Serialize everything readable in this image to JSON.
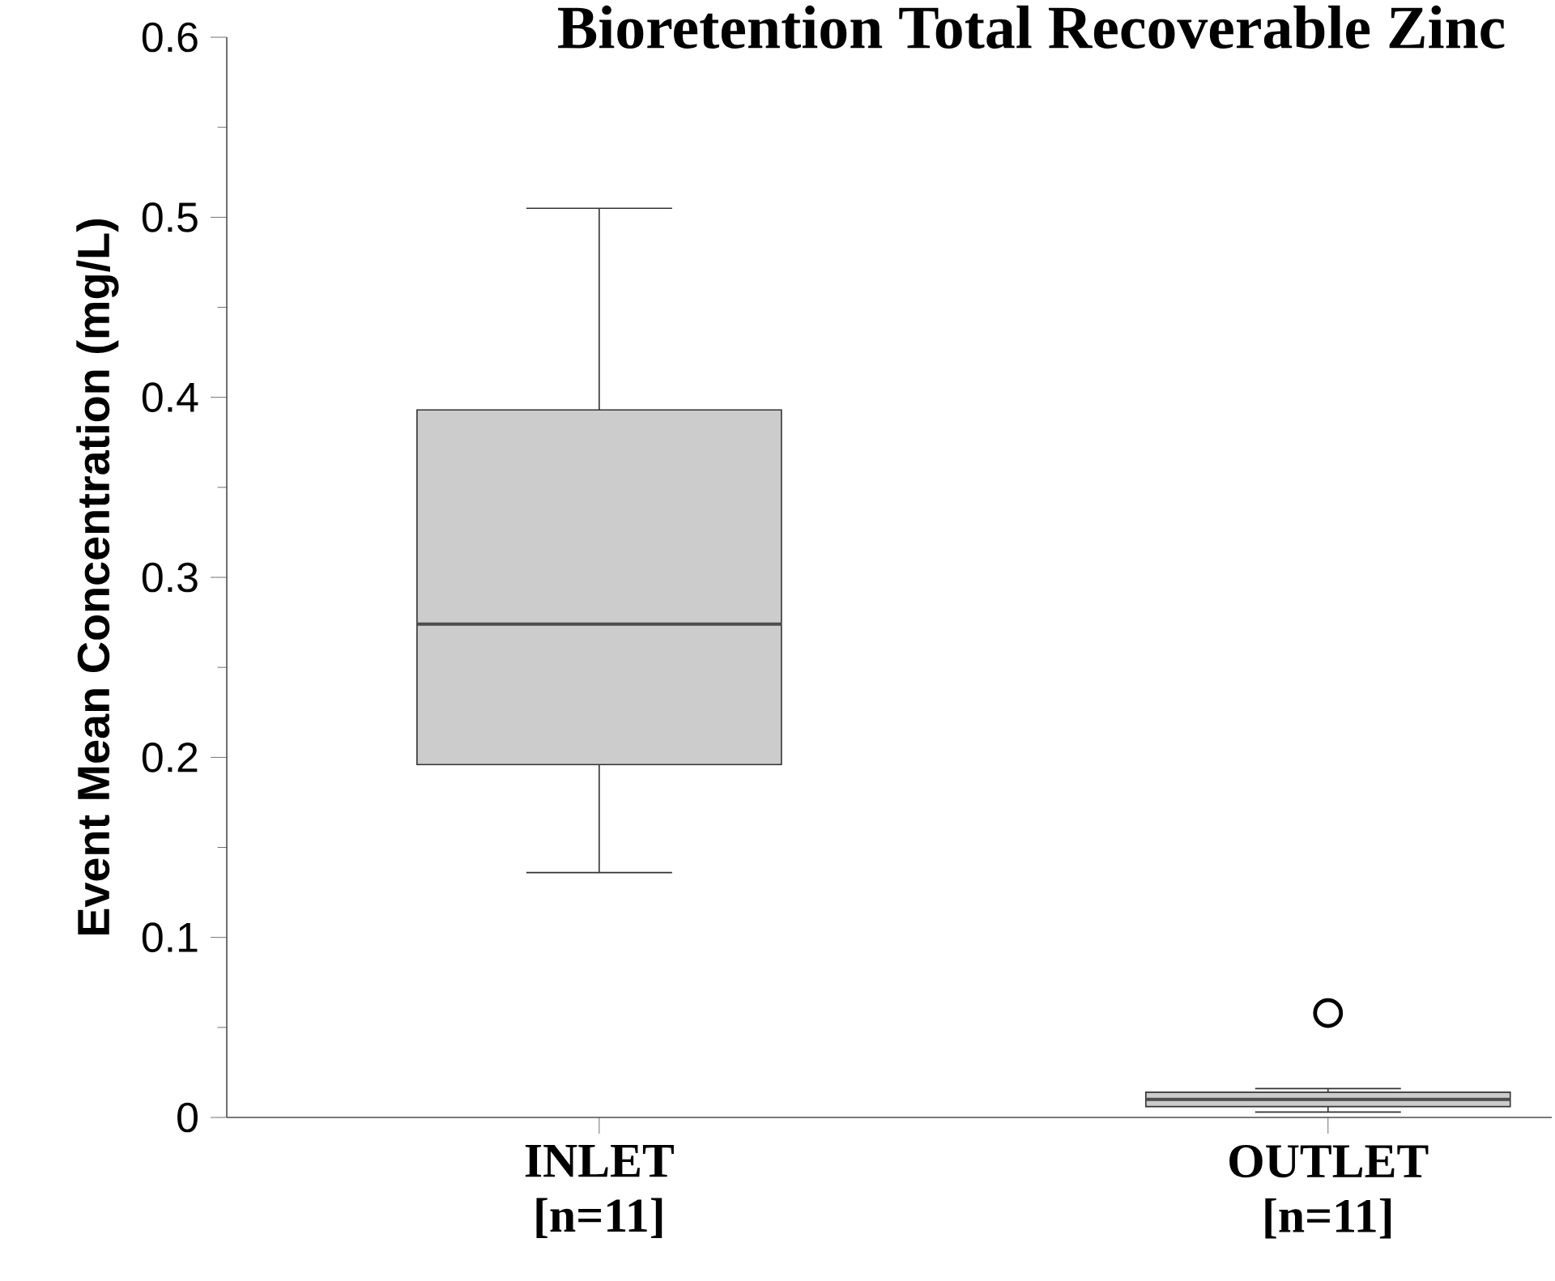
{
  "chart_data": {
    "type": "box",
    "title": "Bioretention Total Recoverable Zinc",
    "ylabel": "Event Mean Concentration (mg/L)",
    "categories": [
      "INLET [n=11]",
      "OUTLET [n=11]"
    ],
    "series": [
      {
        "color": "#cccccc",
        "boxes": [
          {
            "low": 0.136,
            "q1": 0.196,
            "median": 0.274,
            "q3": 0.393,
            "high": 0.505
          },
          {
            "low": 0.003,
            "q1": 0.006,
            "median": 0.01,
            "q3": 0.014,
            "high": 0.016,
            "outliers": [
              0.058
            ]
          }
        ]
      }
    ],
    "marker": "circle",
    "ylim": [
      0,
      0.6
    ],
    "yticks": [
      0,
      0.1,
      0.2,
      0.3,
      0.4,
      0.5,
      0.6
    ]
  }
}
